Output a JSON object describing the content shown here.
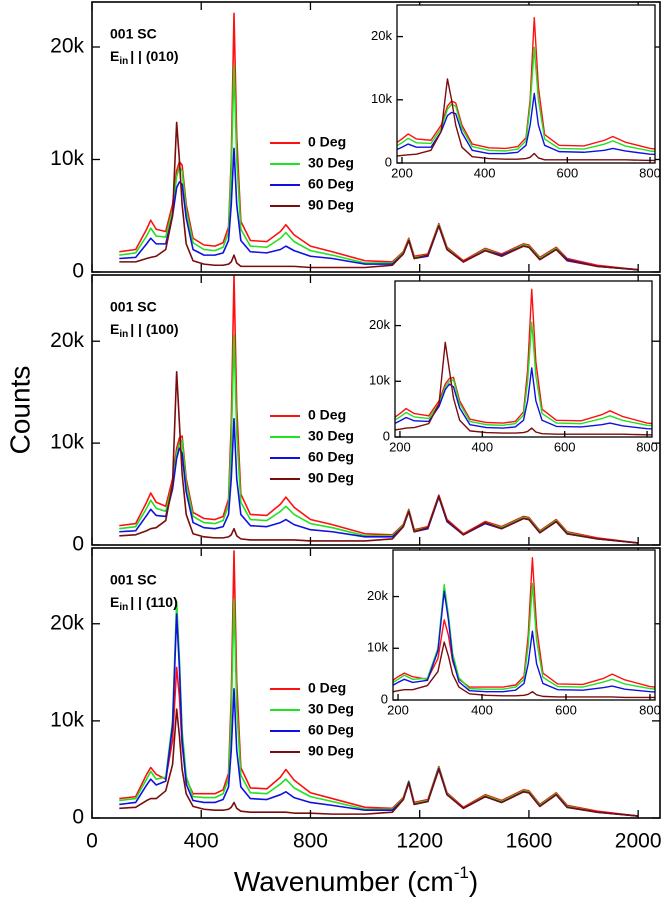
{
  "chart_data": [
    {
      "type": "line",
      "sample": "001 SC",
      "polarization": [
        "E",
        "in",
        "| | (010)"
      ],
      "x": [
        100,
        160,
        200,
        215,
        235,
        270,
        295,
        310,
        320,
        330,
        345,
        370,
        410,
        450,
        480,
        500,
        510,
        520,
        530,
        545,
        580,
        640,
        690,
        710,
        740,
        800,
        880,
        1000,
        1100,
        1140,
        1160,
        1180,
        1230,
        1270,
        1300,
        1360,
        1440,
        1500,
        1580,
        1600,
        1640,
        1700,
        1740,
        1850,
        2000
      ],
      "series": [
        {
          "name": "0 Deg",
          "color": "#ff1010",
          "values": [
            1800,
            2000,
            3800,
            4600,
            3800,
            3600,
            6000,
            9000,
            9800,
            9500,
            6000,
            3000,
            2400,
            2300,
            2600,
            4000,
            10000,
            23000,
            12000,
            4500,
            2800,
            2700,
            3600,
            4200,
            3300,
            2300,
            1800,
            1000,
            900,
            1800,
            3000,
            1400,
            1600,
            4300,
            2200,
            1000,
            2100,
            1600,
            2500,
            2400,
            1300,
            2200,
            1200,
            600,
            200
          ]
        },
        {
          "name": "30 Deg",
          "color": "#22e022",
          "values": [
            1500,
            1700,
            3200,
            3900,
            3200,
            3100,
            5500,
            8500,
            9300,
            9000,
            5500,
            2600,
            2000,
            1900,
            2200,
            3500,
            9000,
            18300,
            10000,
            3800,
            2300,
            2200,
            3000,
            3500,
            2700,
            1900,
            1500,
            800,
            800,
            1700,
            2900,
            1300,
            1500,
            4200,
            2100,
            900,
            2000,
            1500,
            2400,
            2300,
            1200,
            2100,
            1100,
            500,
            200
          ]
        },
        {
          "name": "60 Deg",
          "color": "#1010e0",
          "values": [
            1200,
            1300,
            2500,
            3000,
            2500,
            2500,
            5000,
            7500,
            8000,
            7800,
            4800,
            2000,
            1500,
            1500,
            1700,
            2800,
            6000,
            11000,
            6000,
            2800,
            1800,
            1700,
            2000,
            2300,
            1900,
            1400,
            1200,
            700,
            700,
            1600,
            2800,
            1200,
            1400,
            4100,
            2000,
            900,
            1900,
            1500,
            2300,
            2200,
            1100,
            2000,
            1100,
            500,
            200
          ]
        },
        {
          "name": "90 Deg",
          "color": "#7a0c0c",
          "values": [
            900,
            900,
            1200,
            1300,
            1400,
            2000,
            5000,
            13300,
            10000,
            6000,
            2500,
            1000,
            700,
            600,
            600,
            700,
            900,
            1500,
            800,
            500,
            500,
            500,
            500,
            500,
            500,
            400,
            400,
            400,
            600,
            1600,
            2800,
            1200,
            1500,
            4100,
            2000,
            900,
            1900,
            1400,
            2300,
            2200,
            1100,
            2000,
            1000,
            500,
            200
          ]
        }
      ],
      "xlim": [
        0,
        2080
      ],
      "xticks": [
        0,
        400,
        800,
        1200,
        1600,
        2000
      ],
      "ylim": [
        0,
        24000
      ],
      "yticks": [
        0,
        {
          "value": 10000,
          "label": "10k"
        },
        {
          "value": 20000,
          "label": "20k"
        }
      ],
      "inset": {
        "xlim": [
          188,
          812
        ],
        "xticks": [
          200,
          400,
          600,
          800
        ],
        "ylim": [
          0,
          25000
        ],
        "yticks": [
          0,
          {
            "value": 10000,
            "label": "10k"
          },
          {
            "value": 20000,
            "label": "20k"
          }
        ]
      }
    },
    {
      "type": "line",
      "sample": "001 SC",
      "polarization": [
        "E",
        "in",
        "| | (100)"
      ],
      "y_label": "Counts",
      "x": [
        100,
        160,
        200,
        215,
        235,
        270,
        295,
        310,
        320,
        330,
        345,
        370,
        410,
        450,
        480,
        500,
        510,
        520,
        530,
        545,
        580,
        640,
        690,
        710,
        740,
        800,
        880,
        1000,
        1100,
        1140,
        1160,
        1180,
        1230,
        1270,
        1300,
        1360,
        1440,
        1500,
        1580,
        1600,
        1640,
        1700,
        1740,
        1850,
        2000
      ],
      "series": [
        {
          "name": "0 Deg",
          "color": "#ff1010",
          "values": [
            1900,
            2100,
            4200,
            5100,
            4200,
            3800,
            6500,
            9500,
            10500,
            10700,
            6500,
            3200,
            2600,
            2500,
            2800,
            4500,
            12000,
            26500,
            13500,
            5000,
            3000,
            2900,
            4000,
            4700,
            3700,
            2500,
            2000,
            1100,
            1000,
            2000,
            3500,
            1500,
            1800,
            4900,
            2500,
            1100,
            2300,
            1800,
            2800,
            2700,
            1400,
            2500,
            1300,
            700,
            200
          ]
        },
        {
          "name": "30 Deg",
          "color": "#22e022",
          "values": [
            1600,
            1800,
            3600,
            4400,
            3600,
            3300,
            6000,
            9000,
            10000,
            10300,
            6000,
            2800,
            2200,
            2100,
            2400,
            3900,
            10000,
            20600,
            11000,
            4200,
            2500,
            2400,
            3300,
            3800,
            3000,
            2100,
            1700,
            900,
            900,
            1900,
            3400,
            1400,
            1700,
            4800,
            2400,
            1000,
            2200,
            1700,
            2700,
            2600,
            1300,
            2400,
            1200,
            600,
            200
          ]
        },
        {
          "name": "60 Deg",
          "color": "#1010e0",
          "values": [
            1300,
            1400,
            2900,
            3500,
            2900,
            2800,
            5500,
            8500,
            9500,
            9000,
            5200,
            2200,
            1700,
            1600,
            1800,
            3000,
            6500,
            12400,
            6500,
            3000,
            1900,
            1800,
            2200,
            2500,
            2000,
            1500,
            1300,
            800,
            800,
            1800,
            3300,
            1300,
            1600,
            4700,
            2300,
            1000,
            2100,
            1600,
            2600,
            2500,
            1200,
            2300,
            1100,
            600,
            200
          ]
        },
        {
          "name": "90 Deg",
          "color": "#7a0c0c",
          "values": [
            900,
            1000,
            1400,
            1600,
            1700,
            2400,
            6000,
            17000,
            12000,
            7000,
            3000,
            1100,
            800,
            700,
            700,
            800,
            1000,
            1600,
            900,
            600,
            500,
            500,
            500,
            500,
            500,
            400,
            400,
            400,
            600,
            1800,
            3300,
            1300,
            1700,
            4800,
            2400,
            1000,
            2200,
            1600,
            2600,
            2500,
            1200,
            2300,
            1100,
            600,
            200
          ]
        }
      ],
      "xlim": [
        0,
        2080
      ],
      "xticks": [
        0,
        400,
        800,
        1200,
        1600,
        2000
      ],
      "ylim": [
        0,
        26500
      ],
      "yticks": [
        0,
        {
          "value": 10000,
          "label": "10k"
        },
        {
          "value": 20000,
          "label": "20k"
        }
      ],
      "inset": {
        "xlim": [
          188,
          812
        ],
        "xticks": [
          200,
          400,
          600,
          800
        ],
        "ylim": [
          0,
          28000
        ],
        "yticks": [
          0,
          {
            "value": 10000,
            "label": "10k"
          },
          {
            "value": 20000,
            "label": "20k"
          }
        ]
      }
    },
    {
      "type": "line",
      "sample": "001 SC",
      "polarization": [
        "E",
        "in",
        "| | (110)"
      ],
      "x_label": [
        "Wavenumber (cm",
        "-1",
        ")"
      ],
      "x": [
        100,
        160,
        200,
        215,
        235,
        270,
        295,
        310,
        320,
        330,
        345,
        370,
        410,
        450,
        480,
        500,
        510,
        520,
        530,
        545,
        580,
        640,
        690,
        710,
        740,
        800,
        880,
        1000,
        1100,
        1140,
        1160,
        1180,
        1230,
        1270,
        1300,
        1360,
        1440,
        1500,
        1580,
        1600,
        1640,
        1700,
        1740,
        1850,
        2000
      ],
      "series": [
        {
          "name": "0 Deg",
          "color": "#ff1010",
          "values": [
            2000,
            2200,
            4500,
            5200,
            4500,
            4000,
            8000,
            15500,
            12500,
            7500,
            4000,
            2500,
            2500,
            2500,
            2900,
            4600,
            12500,
            27500,
            14000,
            5200,
            3100,
            3000,
            4200,
            5000,
            3900,
            2600,
            2000,
            1100,
            1000,
            2100,
            3800,
            1600,
            1900,
            5300,
            2600,
            1100,
            2400,
            1800,
            2900,
            2800,
            1400,
            2600,
            1300,
            700,
            200
          ]
        },
        {
          "name": "30 Deg",
          "color": "#22e022",
          "values": [
            1800,
            2000,
            4000,
            4800,
            4000,
            4200,
            10000,
            22300,
            16500,
            9000,
            4300,
            2200,
            2100,
            2100,
            2500,
            4000,
            10500,
            22500,
            11500,
            4400,
            2600,
            2500,
            3500,
            4000,
            3100,
            2200,
            1700,
            900,
            900,
            2000,
            3800,
            1500,
            1800,
            5200,
            2500,
            1000,
            2300,
            1700,
            2800,
            2700,
            1300,
            2500,
            1200,
            600,
            200
          ]
        },
        {
          "name": "60 Deg",
          "color": "#1010e0",
          "values": [
            1400,
            1600,
            3400,
            4000,
            3400,
            3800,
            9500,
            21000,
            15500,
            8000,
            3500,
            1800,
            1600,
            1600,
            1900,
            3200,
            7000,
            13300,
            7000,
            3200,
            2000,
            1900,
            2400,
            2700,
            2100,
            1600,
            1300,
            800,
            800,
            1900,
            3700,
            1400,
            1700,
            5100,
            2400,
            1000,
            2200,
            1600,
            2700,
            2600,
            1200,
            2400,
            1100,
            600,
            200
          ]
        },
        {
          "name": "90 Deg",
          "color": "#7a0c0c",
          "values": [
            1000,
            1100,
            1800,
            2000,
            2000,
            2800,
            5500,
            11200,
            8500,
            5000,
            2500,
            1200,
            900,
            800,
            800,
            900,
            1100,
            1600,
            1000,
            700,
            600,
            600,
            600,
            600,
            500,
            500,
            400,
            400,
            600,
            1900,
            3600,
            1400,
            1700,
            5000,
            2400,
            1000,
            2200,
            1600,
            2700,
            2600,
            1200,
            2400,
            1100,
            600,
            200
          ]
        }
      ],
      "xlim": [
        0,
        2080
      ],
      "xticks": [
        0,
        400,
        800,
        1200,
        1600,
        2000
      ],
      "ylim": [
        0,
        27800
      ],
      "yticks": [
        0,
        {
          "value": 10000,
          "label": "10k"
        },
        {
          "value": 20000,
          "label": "20k"
        }
      ],
      "inset": {
        "xlim": [
          188,
          812
        ],
        "xticks": [
          200,
          400,
          600,
          800
        ],
        "ylim": [
          0,
          29000
        ],
        "yticks": [
          0,
          {
            "value": 10000,
            "label": "10k"
          },
          {
            "value": 20000,
            "label": "20k"
          }
        ]
      }
    }
  ]
}
